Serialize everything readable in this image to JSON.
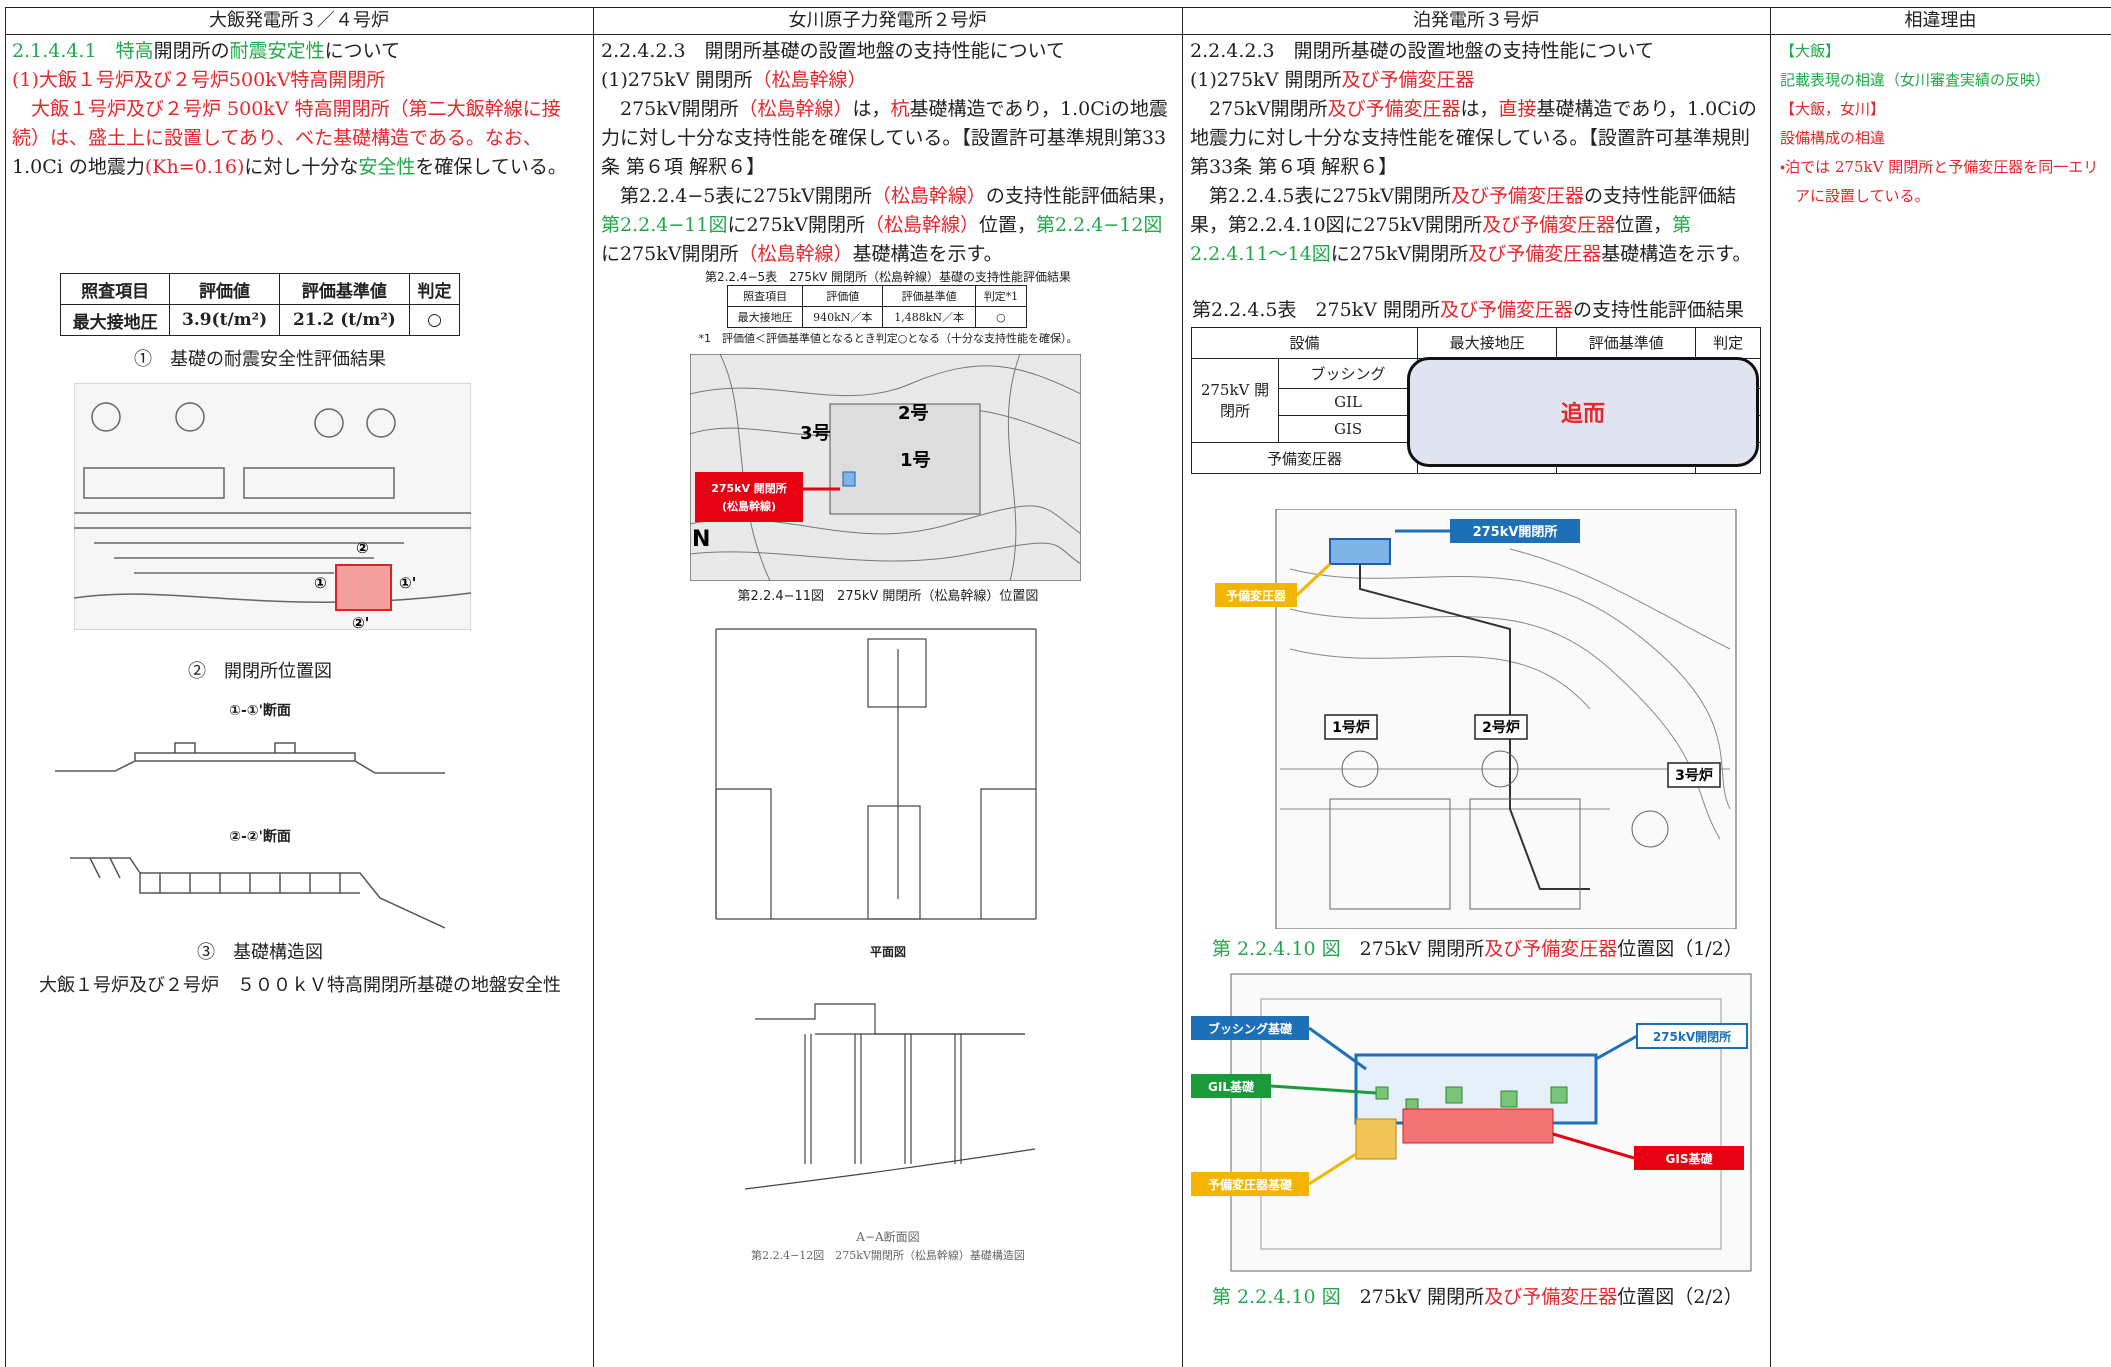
{
  "header": {
    "columns": [
      "大飯発電所３／４号炉",
      "女川原子力発電所２号炉",
      "泊発電所３号炉",
      "相違理由"
    ]
  },
  "col1": {
    "paragraphs": [
      [
        {
          "text": "2.1.4.4.1　",
          "color": "#22a84a"
        },
        {
          "text": "特高",
          "color": "#22a84a"
        },
        {
          "text": "開閉所の"
        },
        {
          "text": "耐震安定性",
          "color": "#22a84a"
        },
        {
          "text": "について"
        }
      ],
      [
        {
          "text": "(1)大飯１号炉及び２号炉500kV特高開閉所",
          "color": "#e8262c"
        }
      ],
      [
        {
          "text": "大飯１号炉及び２号炉 500kV 特高開閉所（第二大飯幹線に接続）は、盛土上に設置してあり、べた基礎構造である。なお、",
          "color": "#e8262c"
        },
        {
          "text": "1.0Ci の地震力"
        },
        {
          "text": "(Kh=0.16)",
          "color": "#e8262c"
        },
        {
          "text": "に対し十分な"
        },
        {
          "text": "安全性",
          "color": "#22a84a"
        },
        {
          "text": "を確保している。"
        }
      ]
    ],
    "table": {
      "headers": [
        "照査項目",
        "評価値",
        "評価基準値",
        "判定"
      ],
      "row": [
        "最大接地圧",
        "3.9(t/m²)",
        "21.2 (t/m²)",
        "○"
      ]
    },
    "captions": [
      "①　基礎の耐震安全性評価結果",
      "②　開閉所位置図",
      "③　基礎構造図"
    ],
    "section_labels": [
      "①-①'断面",
      "②-②'断面"
    ],
    "plan_markers": [
      "①",
      "①'",
      "②",
      "②'"
    ],
    "footer": "大飯１号炉及び２号炉　５００ｋＶ特高開閉所基礎の地盤安全性"
  },
  "col2": {
    "paragraphs": [
      [
        {
          "text": "2.2.4.2.3　開閉所基礎の設置地盤の支持性能について"
        }
      ],
      [
        {
          "text": "(1)275kV 開閉所"
        },
        {
          "text": "（松島幹線）",
          "color": "#e8262c"
        }
      ],
      [
        {
          "text": "275kV開閉所"
        },
        {
          "text": "（松島幹線）",
          "color": "#e8262c"
        },
        {
          "text": "は，"
        },
        {
          "text": "杭",
          "color": "#e8262c"
        },
        {
          "text": "基礎構造であり，1.0Ciの地震力に対し十分な支持性能を確保している。【設置許可基準規則第33条 第６項 解釈６】"
        }
      ],
      [
        {
          "text": "第2.2.4−5表に275kV開閉所"
        },
        {
          "text": "（松島幹線）",
          "color": "#e8262c"
        },
        {
          "text": "の支持性能評価結果，"
        },
        {
          "text": "第2.2.4−11図",
          "color": "#22a84a"
        },
        {
          "text": "に275kV開閉所"
        },
        {
          "text": "（松島幹線）",
          "color": "#e8262c"
        },
        {
          "text": "位置，"
        },
        {
          "text": "第2.2.4−12図",
          "color": "#22a84a"
        },
        {
          "text": "に275kV開閉所"
        },
        {
          "text": "（松島幹線）",
          "color": "#e8262c"
        },
        {
          "text": "基礎構造を示す。"
        }
      ]
    ],
    "table_caption": "第2.2.4−5表　275kV 開閉所（松島幹線）基礎の支持性能評価結果",
    "table": {
      "headers": [
        "照査項目",
        "評価値",
        "評価基準値",
        "判定*1"
      ],
      "row": [
        "最大接地圧",
        "940kN／本",
        "1,488kN／本",
        "○"
      ]
    },
    "table_note": "*1　評価値＜評価基準値となるとき判定○となる（十分な支持性能を確保）。",
    "map_labels": {
      "switchyard": [
        "275kV 開閉所",
        "(松島幹線)"
      ],
      "units": [
        "3号",
        "2号",
        "1号"
      ],
      "north": "N"
    },
    "fig11_caption": "第2.2.4−11図　275kV 開閉所（松島幹線）位置図",
    "plan_caption": "平面図",
    "section_caption": "A−A断面図",
    "fig12_caption": "第2.2.4−12図　275kV開閉所（松島幹線）基礎構造図"
  },
  "col3": {
    "paragraphs": [
      [
        {
          "text": "2.2.4.2.3　開閉所基礎の設置地盤の支持性能について"
        }
      ],
      [
        {
          "text": "(1)275kV 開閉所"
        },
        {
          "text": "及び予備変圧器",
          "color": "#e8262c"
        }
      ],
      [
        {
          "text": "275kV開閉所"
        },
        {
          "text": "及び予備変圧器",
          "color": "#e8262c"
        },
        {
          "text": "は，"
        },
        {
          "text": "直接",
          "color": "#e8262c"
        },
        {
          "text": "基礎構造であり，1.0Ciの地震力に対し十分な支持性能を確保している。【設置許可基準規則第33条 第６項 解釈６】"
        }
      ],
      [
        {
          "text": "第2.2.4.5表に275kV開閉所"
        },
        {
          "text": "及び予備変圧器",
          "color": "#e8262c"
        },
        {
          "text": "の支持性能評価結果，第2.2.4.10図に275kV開閉所"
        },
        {
          "text": "及び予備変圧器",
          "color": "#e8262c"
        },
        {
          "text": "位置，"
        },
        {
          "text": "第2.2.4.11〜14図",
          "color": "#22a84a"
        },
        {
          "text": "に275kV開閉所"
        },
        {
          "text": "及び予備変圧器",
          "color": "#e8262c"
        },
        {
          "text": "基礎構造を示す。"
        }
      ]
    ],
    "table_title": [
      {
        "text": "第2.2.4.5表　275kV 開閉所"
      },
      {
        "text": "及び予備変圧器",
        "color": "#e8262c"
      },
      {
        "text": "の支持性能評価結果"
      }
    ],
    "table": {
      "headers": [
        "設備",
        "最大接地圧",
        "評価基準値",
        "判定"
      ],
      "group": "275kV 開閉所",
      "rows": [
        "ブッシング",
        "GIL",
        "GIS"
      ],
      "transformer": "予備変圧器",
      "overlay": "追而"
    },
    "fig1_labels": {
      "switchyard": "275kV開閉所",
      "transformer": "予備変圧器",
      "units": [
        "1号炉",
        "2号炉",
        "3号炉"
      ]
    },
    "fig1_caption": [
      {
        "text": "第 2.2.4.10 図",
        "color": "#22a84a"
      },
      {
        "text": "　275kV 開閉所"
      },
      {
        "text": "及び予備変圧器",
        "color": "#e8262c"
      },
      {
        "text": "位置図（1/2）"
      }
    ],
    "fig2_labels": {
      "bushing": "ブッシング基礎",
      "gil": "GIL基礎",
      "transformer": "予備変圧器基礎",
      "switchyard": "275kV開閉所",
      "gis": "GIS基礎"
    },
    "fig2_caption": [
      {
        "text": "第 2.2.4.10 図",
        "color": "#22a84a"
      },
      {
        "text": "　275kV 開閉所"
      },
      {
        "text": "及び予備変圧器",
        "color": "#e8262c"
      },
      {
        "text": "位置図（2/2）"
      }
    ]
  },
  "col4": {
    "paragraphs": [
      [
        {
          "text": "【大飯】",
          "color": "#22a84a"
        }
      ],
      [
        {
          "text": "記載表現の相違（女川審査実績の反映）",
          "color": "#22a84a"
        }
      ],
      [
        {
          "text": "【大飯，女川】",
          "color": "#e8262c"
        }
      ],
      [
        {
          "text": "設備構成の相違",
          "color": "#e8262c"
        }
      ],
      [
        {
          "text": "・泊では 275kV 開閉所と予備変圧器を同一エリアに設置している。",
          "color": "#e8262c"
        }
      ]
    ]
  }
}
